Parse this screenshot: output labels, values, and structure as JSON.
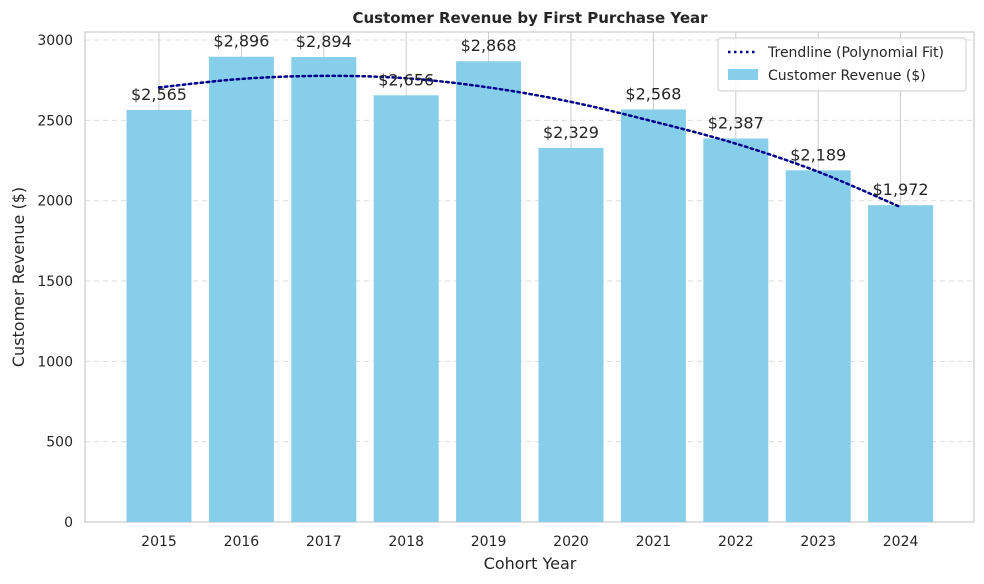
{
  "chart_data": {
    "type": "bar",
    "title": "Customer Revenue by First Purchase Year",
    "xlabel": "Cohort Year",
    "ylabel": "Customer Revenue ($)",
    "categories": [
      "2015",
      "2016",
      "2017",
      "2018",
      "2019",
      "2020",
      "2021",
      "2022",
      "2023",
      "2024"
    ],
    "series": [
      {
        "name": "Customer Revenue ($)",
        "type": "bar",
        "values": [
          2565,
          2896,
          2894,
          2656,
          2868,
          2329,
          2568,
          2387,
          2189,
          1972
        ],
        "data_labels": [
          "$2,565",
          "$2,896",
          "$2,894",
          "$2,656",
          "$2,868",
          "$2,329",
          "$2,568",
          "$2,387",
          "$2,189",
          "$1,972"
        ],
        "color": "#87CEEB"
      },
      {
        "name": "Trendline (Polynomial Fit)",
        "type": "line",
        "style": "dotted",
        "color": "#00008B",
        "values": [
          2705,
          2758,
          2777,
          2762,
          2705,
          2615,
          2493,
          2355,
          2180,
          1960
        ]
      }
    ],
    "ylim": [
      0,
      3050
    ],
    "yticks": [
      0,
      500,
      1000,
      1500,
      2000,
      2500,
      3000
    ],
    "grid": true,
    "legend": "top-right"
  }
}
